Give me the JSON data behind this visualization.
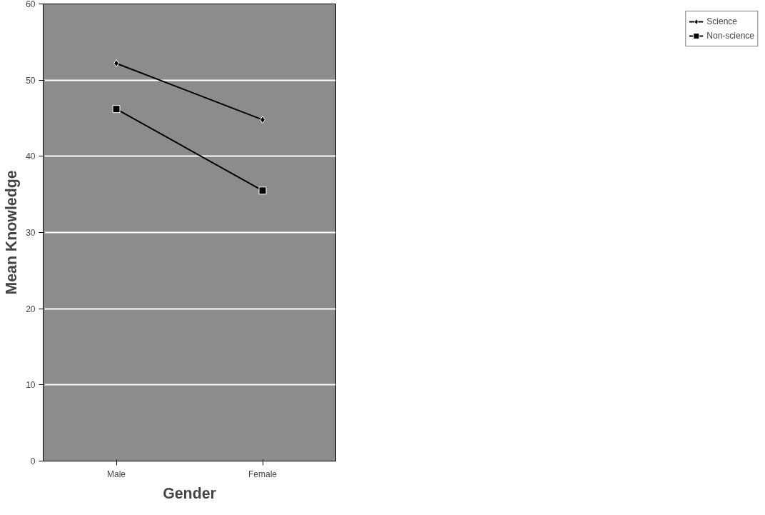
{
  "chart_data": {
    "type": "line",
    "xlabel": "Gender",
    "ylabel": "Mean Knowledge",
    "categories": [
      "Male",
      "Female"
    ],
    "series": [
      {
        "name": "Science",
        "color": "#000000",
        "values": [
          52.2,
          44.8
        ],
        "marker": "diamond"
      },
      {
        "name": "Non-science",
        "color": "#000000",
        "values": [
          46.2,
          35.5
        ],
        "marker": "square"
      }
    ],
    "ylim": [
      0,
      60
    ],
    "yticks": [
      0,
      10,
      20,
      30,
      40,
      50,
      60
    ],
    "grid": "y",
    "legend": "right",
    "line_style": "solid"
  }
}
